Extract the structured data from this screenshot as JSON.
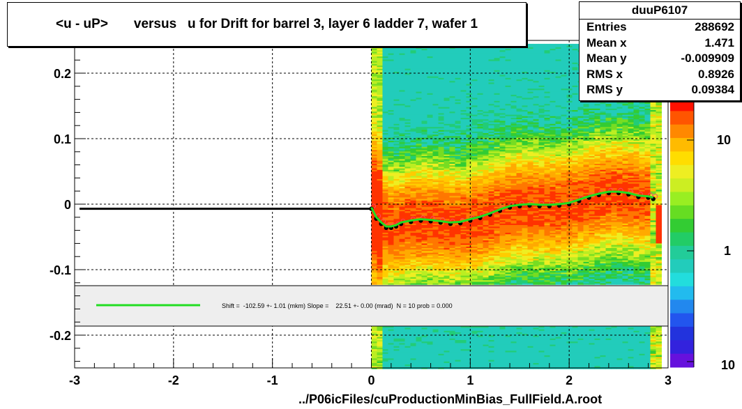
{
  "title": "<u - uP>       versus   u for Drift for barrel 3, layer 6 ladder 7, wafer 1",
  "stats": {
    "name": "duuP6107",
    "rows": [
      {
        "label": "Entries",
        "value": "288692"
      },
      {
        "label": "Mean x",
        "value": "1.471"
      },
      {
        "label": "Mean y",
        "value": "-0.009909"
      },
      {
        "label": "RMS x",
        "value": "0.8926"
      },
      {
        "label": "RMS y",
        "value": "0.09384"
      }
    ]
  },
  "fit_text": "Shift =  -102.59 +- 1.01 (mkm) Slope =    22.51 +- 0.00 (mrad)  N = 10 prob = 0.000",
  "x_title": "../P06icFiles/cuProductionMinBias_FullField.A.root",
  "colors": {
    "fit_line": "#22dd22",
    "profile": "#000000",
    "band": "#eeeeee"
  },
  "chart_data": {
    "type": "heatmap",
    "xlim": [
      -3,
      3
    ],
    "ylim": [
      -0.25,
      0.25
    ],
    "x_ticks": [
      "-3",
      "-2",
      "-1",
      "0",
      "1",
      "2",
      "3"
    ],
    "y_ticks": [
      "-0.2",
      "-0.1",
      "0",
      "0.1",
      "0.2"
    ],
    "z_scale": "log",
    "z_ticks": [
      "1",
      "10",
      "10"
    ],
    "grid": true,
    "profile": {
      "x": [
        -2.95,
        0.0,
        0.05,
        0.1,
        0.15,
        0.2,
        0.25,
        0.3,
        0.4,
        0.5,
        0.6,
        0.7,
        0.8,
        0.9,
        1.0,
        1.1,
        1.2,
        1.3,
        1.4,
        1.5,
        1.6,
        1.7,
        1.8,
        1.9,
        2.0,
        2.1,
        2.2,
        2.3,
        2.4,
        2.5,
        2.6,
        2.7,
        2.8,
        2.85
      ],
      "y": [
        -0.007,
        -0.007,
        -0.022,
        -0.03,
        -0.036,
        -0.036,
        -0.034,
        -0.03,
        -0.027,
        -0.025,
        -0.026,
        -0.028,
        -0.03,
        -0.029,
        -0.025,
        -0.021,
        -0.016,
        -0.01,
        -0.005,
        -0.003,
        -0.002,
        -0.003,
        -0.003,
        -0.002,
        0.0,
        0.005,
        0.01,
        0.014,
        0.017,
        0.017,
        0.015,
        0.011,
        0.01,
        0.008
      ]
    },
    "fit": {
      "name": "Shift/Slope fit",
      "x_range": [
        0.0,
        2.95
      ]
    }
  }
}
